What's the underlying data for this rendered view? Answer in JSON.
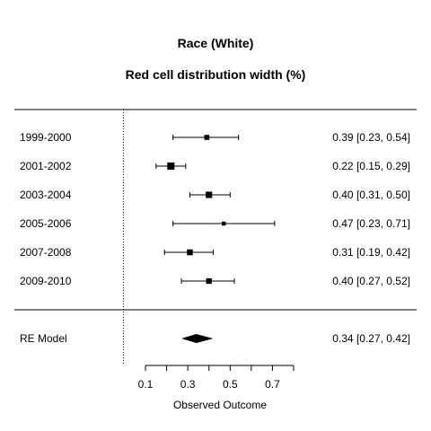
{
  "chart_data": {
    "type": "forest",
    "title": "Race (White)",
    "subtitle": "Red cell distribution width (%)",
    "xlabel": "Observed Outcome",
    "x_ticks": [
      0.1,
      0.3,
      0.5,
      0.7
    ],
    "x_tick_labels": [
      "0.1",
      "0.3",
      "0.5",
      "0.7"
    ],
    "xlim": [
      0.1,
      0.8
    ],
    "reference_line": 0,
    "studies": [
      {
        "label": "1999-2000",
        "estimate": 0.39,
        "lower": 0.23,
        "upper": 0.54,
        "ci_text": "0.39 [0.23, 0.54]",
        "weight": 0.6
      },
      {
        "label": "2001-2002",
        "estimate": 0.22,
        "lower": 0.15,
        "upper": 0.29,
        "ci_text": "0.22 [0.15, 0.29]",
        "weight": 1.0
      },
      {
        "label": "2003-2004",
        "estimate": 0.4,
        "lower": 0.31,
        "upper": 0.5,
        "ci_text": "0.40 [0.31, 0.50]",
        "weight": 0.85
      },
      {
        "label": "2005-2006",
        "estimate": 0.47,
        "lower": 0.23,
        "upper": 0.71,
        "ci_text": "0.47 [0.23, 0.71]",
        "weight": 0.4
      },
      {
        "label": "2007-2008",
        "estimate": 0.31,
        "lower": 0.19,
        "upper": 0.42,
        "ci_text": "0.31 [0.19, 0.42]",
        "weight": 0.75
      },
      {
        "label": "2009-2010",
        "estimate": 0.4,
        "lower": 0.27,
        "upper": 0.52,
        "ci_text": "0.40 [0.27, 0.52]",
        "weight": 0.7
      }
    ],
    "summary": {
      "label": "RE Model",
      "estimate": 0.34,
      "lower": 0.27,
      "upper": 0.42,
      "ci_text": "0.34 [0.27, 0.42]"
    }
  }
}
